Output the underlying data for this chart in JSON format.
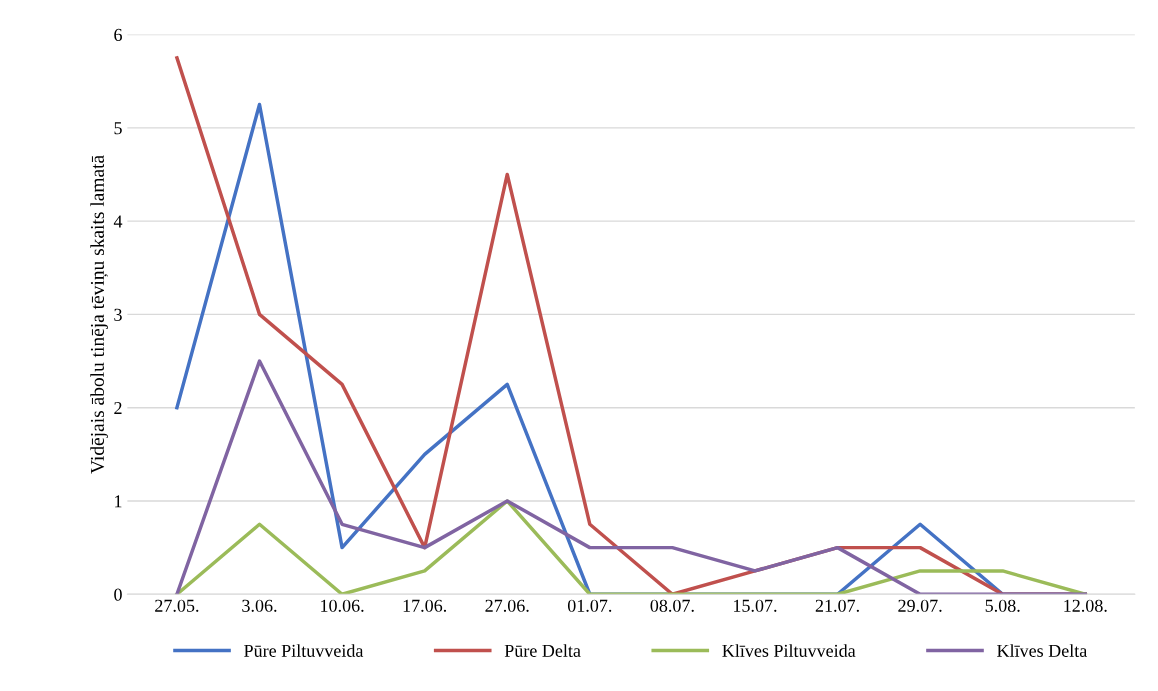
{
  "chart_data": {
    "type": "line",
    "ylabel": "Vidējais ābolu tinēja tēviņu skaits lamatā",
    "categories": [
      "27.05.",
      "3.06.",
      "10.06.",
      "17.06.",
      "27.06.",
      "01.07.",
      "08.07.",
      "15.07.",
      "21.07.",
      "29.07.",
      "5.08.",
      "12.08."
    ],
    "series": [
      {
        "name": "Pūre Piltuvveida",
        "color": "#4472c4",
        "values": [
          2,
          5.25,
          0.5,
          1.5,
          2.25,
          0,
          0,
          0,
          0,
          0.75,
          0,
          0
        ]
      },
      {
        "name": "Pūre Delta",
        "color": "#c0504d",
        "values": [
          5.75,
          3,
          2.25,
          0.5,
          4.5,
          0.75,
          0,
          0.25,
          0.5,
          0.5,
          0,
          0
        ]
      },
      {
        "name": "Klīves Piltuvveida",
        "color": "#9bbb59",
        "values": [
          0,
          0.75,
          0,
          0.25,
          1,
          0,
          0,
          0,
          0,
          0.25,
          0.25,
          0
        ]
      },
      {
        "name": "Klīves Delta",
        "color": "#8064a2",
        "values": [
          0,
          2.5,
          0.75,
          0.5,
          1,
          0.5,
          0.5,
          0.25,
          0.5,
          0,
          0,
          0
        ]
      }
    ],
    "ylim": [
      0,
      6
    ],
    "yticks": [
      0,
      1,
      2,
      3,
      4,
      5,
      6
    ],
    "grid": "y",
    "legend": "bottom",
    "marker": "none",
    "line_style": "solid"
  }
}
